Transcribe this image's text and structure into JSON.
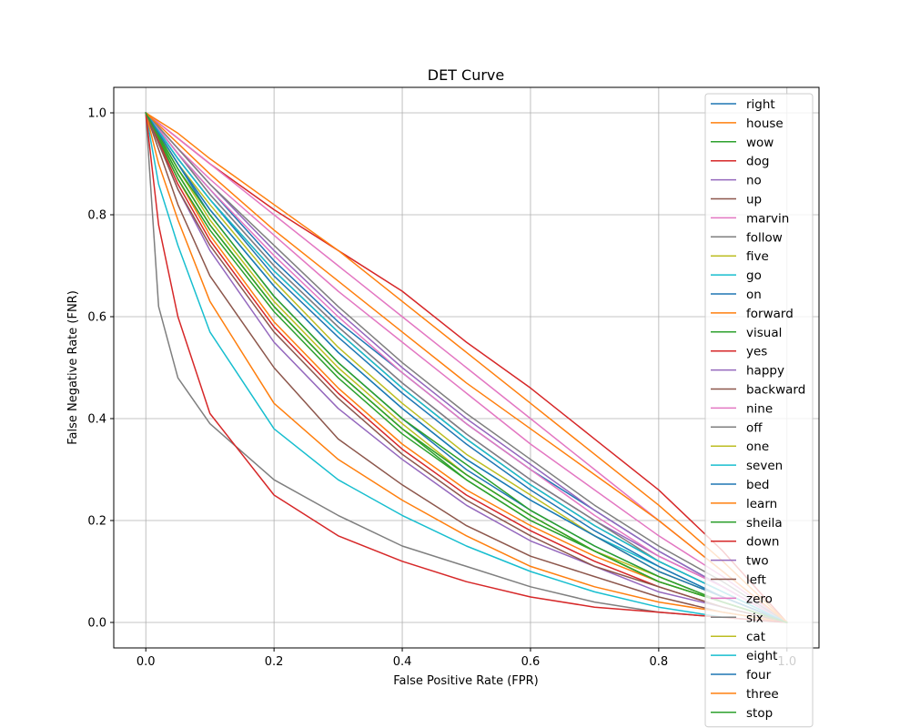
{
  "chart_data": {
    "type": "line",
    "title": "DET Curve",
    "xlabel": "False Positive Rate (FPR)",
    "ylabel": "False Negative Rate (FNR)",
    "xlim": [
      -0.05,
      1.05
    ],
    "ylim": [
      -0.05,
      1.05
    ],
    "xticks": [
      0.0,
      0.2,
      0.4,
      0.6,
      0.8,
      1.0
    ],
    "yticks": [
      0.0,
      0.2,
      0.4,
      0.6,
      0.8,
      1.0
    ],
    "xtick_labels": [
      "0.0",
      "0.2",
      "0.4",
      "0.6",
      "0.8",
      "1.0"
    ],
    "ytick_labels": [
      "0.0",
      "0.2",
      "0.4",
      "0.6",
      "0.8",
      "1.0"
    ],
    "grid": true,
    "legend_position": "right",
    "series": [
      {
        "name": "right",
        "color": "#1f77b4",
        "x": [
          0,
          0.05,
          0.1,
          0.2,
          0.3,
          0.4,
          0.5,
          0.6,
          0.7,
          0.8,
          0.9,
          1.0
        ],
        "y": [
          1,
          0.9,
          0.8,
          0.64,
          0.51,
          0.4,
          0.3,
          0.22,
          0.15,
          0.09,
          0.04,
          0
        ]
      },
      {
        "name": "house",
        "color": "#ff7f0e",
        "x": [
          0,
          0.05,
          0.1,
          0.2,
          0.3,
          0.4,
          0.5,
          0.6,
          0.7,
          0.8,
          0.9,
          1.0
        ],
        "y": [
          1,
          0.87,
          0.76,
          0.59,
          0.46,
          0.35,
          0.26,
          0.19,
          0.13,
          0.08,
          0.04,
          0
        ]
      },
      {
        "name": "wow",
        "color": "#2ca02c",
        "x": [
          0,
          0.05,
          0.1,
          0.2,
          0.3,
          0.4,
          0.5,
          0.6,
          0.7,
          0.8,
          0.9,
          1.0
        ],
        "y": [
          1,
          0.88,
          0.78,
          0.62,
          0.49,
          0.38,
          0.28,
          0.2,
          0.14,
          0.08,
          0.04,
          0
        ]
      },
      {
        "name": "dog",
        "color": "#d62728",
        "x": [
          0,
          0.05,
          0.1,
          0.2,
          0.3,
          0.4,
          0.5,
          0.6,
          0.7,
          0.8,
          0.9,
          1.0
        ],
        "y": [
          1,
          0.95,
          0.9,
          0.81,
          0.73,
          0.65,
          0.55,
          0.46,
          0.36,
          0.26,
          0.14,
          0
        ]
      },
      {
        "name": "no",
        "color": "#9467bd",
        "x": [
          0,
          0.05,
          0.1,
          0.2,
          0.3,
          0.4,
          0.5,
          0.6,
          0.7,
          0.8,
          0.9,
          1.0
        ],
        "y": [
          1,
          0.92,
          0.84,
          0.7,
          0.58,
          0.47,
          0.37,
          0.28,
          0.2,
          0.13,
          0.07,
          0
        ]
      },
      {
        "name": "up",
        "color": "#8c564b",
        "x": [
          0,
          0.05,
          0.1,
          0.2,
          0.3,
          0.4,
          0.5,
          0.6,
          0.7,
          0.8,
          0.9,
          1.0
        ],
        "y": [
          1,
          0.91,
          0.83,
          0.69,
          0.57,
          0.46,
          0.36,
          0.27,
          0.19,
          0.12,
          0.06,
          0
        ]
      },
      {
        "name": "marvin",
        "color": "#e377c2",
        "x": [
          0,
          0.05,
          0.1,
          0.2,
          0.3,
          0.4,
          0.5,
          0.6,
          0.7,
          0.8,
          0.9,
          1.0
        ],
        "y": [
          1,
          0.95,
          0.9,
          0.8,
          0.7,
          0.6,
          0.5,
          0.4,
          0.3,
          0.2,
          0.1,
          0
        ]
      },
      {
        "name": "follow",
        "color": "#7f7f7f",
        "x": [
          0,
          0.05,
          0.1,
          0.2,
          0.3,
          0.4,
          0.5,
          0.6,
          0.7,
          0.8,
          0.9,
          1.0
        ],
        "y": [
          1,
          0.92,
          0.84,
          0.7,
          0.58,
          0.47,
          0.37,
          0.28,
          0.2,
          0.12,
          0.06,
          0
        ]
      },
      {
        "name": "five",
        "color": "#bcbd22",
        "x": [
          0,
          0.05,
          0.1,
          0.2,
          0.3,
          0.4,
          0.5,
          0.6,
          0.7,
          0.8,
          0.9,
          1.0
        ],
        "y": [
          1,
          0.89,
          0.79,
          0.63,
          0.5,
          0.39,
          0.29,
          0.21,
          0.14,
          0.09,
          0.04,
          0
        ]
      },
      {
        "name": "go",
        "color": "#17becf",
        "x": [
          0,
          0.05,
          0.1,
          0.2,
          0.3,
          0.4,
          0.5,
          0.6,
          0.7,
          0.8,
          0.9,
          1.0
        ],
        "y": [
          1,
          0.9,
          0.81,
          0.66,
          0.53,
          0.42,
          0.32,
          0.24,
          0.17,
          0.11,
          0.05,
          0
        ]
      },
      {
        "name": "on",
        "color": "#1f77b4",
        "x": [
          0,
          0.05,
          0.1,
          0.2,
          0.3,
          0.4,
          0.5,
          0.6,
          0.7,
          0.8,
          0.9,
          1.0
        ],
        "y": [
          1,
          0.92,
          0.85,
          0.71,
          0.59,
          0.49,
          0.39,
          0.3,
          0.22,
          0.14,
          0.07,
          0
        ]
      },
      {
        "name": "forward",
        "color": "#ff7f0e",
        "x": [
          0,
          0.05,
          0.1,
          0.2,
          0.3,
          0.4,
          0.5,
          0.6,
          0.7,
          0.8,
          0.9,
          1.0
        ],
        "y": [
          1,
          0.96,
          0.91,
          0.82,
          0.73,
          0.63,
          0.53,
          0.43,
          0.33,
          0.23,
          0.12,
          0
        ]
      },
      {
        "name": "visual",
        "color": "#2ca02c",
        "x": [
          0,
          0.05,
          0.1,
          0.2,
          0.3,
          0.4,
          0.5,
          0.6,
          0.7,
          0.8,
          0.9,
          1.0
        ],
        "y": [
          1,
          0.87,
          0.77,
          0.61,
          0.48,
          0.37,
          0.28,
          0.2,
          0.14,
          0.08,
          0.04,
          0
        ]
      },
      {
        "name": "yes",
        "color": "#d62728",
        "x": [
          0,
          0.05,
          0.1,
          0.2,
          0.3,
          0.4,
          0.5,
          0.6,
          0.7,
          0.8,
          0.9,
          1.0
        ],
        "y": [
          1,
          0.86,
          0.75,
          0.58,
          0.45,
          0.34,
          0.25,
          0.18,
          0.12,
          0.07,
          0.03,
          0
        ]
      },
      {
        "name": "happy",
        "color": "#9467bd",
        "x": [
          0,
          0.05,
          0.1,
          0.2,
          0.3,
          0.4,
          0.5,
          0.6,
          0.7,
          0.8,
          0.9,
          1.0
        ],
        "y": [
          1,
          0.93,
          0.86,
          0.73,
          0.61,
          0.5,
          0.4,
          0.31,
          0.22,
          0.14,
          0.07,
          0
        ]
      },
      {
        "name": "backward",
        "color": "#8c564b",
        "x": [
          0,
          0.05,
          0.1,
          0.2,
          0.3,
          0.4,
          0.5,
          0.6,
          0.7,
          0.8,
          0.9,
          1.0
        ],
        "y": [
          1,
          0.82,
          0.68,
          0.5,
          0.36,
          0.27,
          0.19,
          0.13,
          0.09,
          0.05,
          0.02,
          0
        ]
      },
      {
        "name": "nine",
        "color": "#e377c2",
        "x": [
          0,
          0.05,
          0.1,
          0.2,
          0.3,
          0.4,
          0.5,
          0.6,
          0.7,
          0.8,
          0.9,
          1.0
        ],
        "y": [
          1,
          0.93,
          0.87,
          0.76,
          0.65,
          0.55,
          0.45,
          0.35,
          0.26,
          0.17,
          0.09,
          0
        ]
      },
      {
        "name": "off",
        "color": "#7f7f7f",
        "x": [
          0,
          0.02,
          0.05,
          0.1,
          0.2,
          0.3,
          0.4,
          0.5,
          0.6,
          0.7,
          0.8,
          0.9,
          1.0
        ],
        "y": [
          1,
          0.62,
          0.48,
          0.39,
          0.28,
          0.21,
          0.15,
          0.11,
          0.07,
          0.04,
          0.02,
          0.01,
          0
        ]
      },
      {
        "name": "one",
        "color": "#bcbd22",
        "x": [
          0,
          0.05,
          0.1,
          0.2,
          0.3,
          0.4,
          0.5,
          0.6,
          0.7,
          0.8,
          0.9,
          1.0
        ],
        "y": [
          1,
          0.9,
          0.82,
          0.67,
          0.54,
          0.43,
          0.33,
          0.25,
          0.17,
          0.1,
          0.05,
          0
        ]
      },
      {
        "name": "seven",
        "color": "#17becf",
        "x": [
          0,
          0.02,
          0.05,
          0.1,
          0.2,
          0.3,
          0.4,
          0.5,
          0.6,
          0.7,
          0.8,
          0.9,
          1.0
        ],
        "y": [
          1,
          0.86,
          0.74,
          0.57,
          0.38,
          0.28,
          0.21,
          0.15,
          0.1,
          0.06,
          0.03,
          0.01,
          0
        ]
      },
      {
        "name": "bed",
        "color": "#1f77b4",
        "x": [
          0,
          0.05,
          0.1,
          0.2,
          0.3,
          0.4,
          0.5,
          0.6,
          0.7,
          0.8,
          0.9,
          1.0
        ],
        "y": [
          1,
          0.91,
          0.83,
          0.68,
          0.56,
          0.45,
          0.35,
          0.26,
          0.18,
          0.11,
          0.05,
          0
        ]
      },
      {
        "name": "learn",
        "color": "#ff7f0e",
        "x": [
          0,
          0.02,
          0.05,
          0.1,
          0.2,
          0.3,
          0.4,
          0.5,
          0.6,
          0.7,
          0.8,
          0.9,
          1.0
        ],
        "y": [
          1,
          0.9,
          0.79,
          0.63,
          0.43,
          0.32,
          0.24,
          0.17,
          0.11,
          0.07,
          0.04,
          0.02,
          0
        ]
      },
      {
        "name": "sheila",
        "color": "#2ca02c",
        "x": [
          0,
          0.05,
          0.1,
          0.2,
          0.3,
          0.4,
          0.5,
          0.6,
          0.7,
          0.8,
          0.9,
          1.0
        ],
        "y": [
          1,
          0.89,
          0.8,
          0.64,
          0.51,
          0.4,
          0.31,
          0.22,
          0.15,
          0.09,
          0.04,
          0
        ]
      },
      {
        "name": "down",
        "color": "#d62728",
        "x": [
          0,
          0.02,
          0.05,
          0.1,
          0.2,
          0.3,
          0.4,
          0.5,
          0.6,
          0.7,
          0.8,
          0.9,
          1.0
        ],
        "y": [
          1,
          0.78,
          0.6,
          0.41,
          0.25,
          0.17,
          0.12,
          0.08,
          0.05,
          0.03,
          0.02,
          0.01,
          0
        ]
      },
      {
        "name": "two",
        "color": "#9467bd",
        "x": [
          0,
          0.05,
          0.1,
          0.2,
          0.3,
          0.4,
          0.5,
          0.6,
          0.7,
          0.8,
          0.9,
          1.0
        ],
        "y": [
          1,
          0.85,
          0.73,
          0.55,
          0.42,
          0.32,
          0.23,
          0.16,
          0.11,
          0.06,
          0.03,
          0
        ]
      },
      {
        "name": "left",
        "color": "#8c564b",
        "x": [
          0,
          0.05,
          0.1,
          0.2,
          0.3,
          0.4,
          0.5,
          0.6,
          0.7,
          0.8,
          0.9,
          1.0
        ],
        "y": [
          1,
          0.85,
          0.74,
          0.57,
          0.44,
          0.33,
          0.24,
          0.17,
          0.11,
          0.07,
          0.03,
          0
        ]
      },
      {
        "name": "zero",
        "color": "#e377c2",
        "x": [
          0,
          0.05,
          0.1,
          0.2,
          0.3,
          0.4,
          0.5,
          0.6,
          0.7,
          0.8,
          0.9,
          1.0
        ],
        "y": [
          1,
          0.92,
          0.85,
          0.72,
          0.6,
          0.49,
          0.39,
          0.3,
          0.21,
          0.13,
          0.07,
          0
        ]
      },
      {
        "name": "six",
        "color": "#7f7f7f",
        "x": [
          0,
          0.05,
          0.1,
          0.2,
          0.3,
          0.4,
          0.5,
          0.6,
          0.7,
          0.8,
          0.9,
          1.0
        ],
        "y": [
          1,
          0.93,
          0.86,
          0.74,
          0.62,
          0.51,
          0.41,
          0.32,
          0.23,
          0.15,
          0.08,
          0
        ]
      },
      {
        "name": "cat",
        "color": "#bcbd22",
        "x": [
          0,
          0.05,
          0.1,
          0.2,
          0.3,
          0.4,
          0.5,
          0.6,
          0.7,
          0.8,
          0.9,
          1.0
        ],
        "y": [
          1,
          0.88,
          0.78,
          0.62,
          0.49,
          0.38,
          0.29,
          0.21,
          0.14,
          0.08,
          0.04,
          0
        ]
      },
      {
        "name": "eight",
        "color": "#17becf",
        "x": [
          0,
          0.05,
          0.1,
          0.2,
          0.3,
          0.4,
          0.5,
          0.6,
          0.7,
          0.8,
          0.9,
          1.0
        ],
        "y": [
          1,
          0.91,
          0.83,
          0.69,
          0.57,
          0.46,
          0.36,
          0.27,
          0.19,
          0.12,
          0.06,
          0
        ]
      },
      {
        "name": "four",
        "color": "#1f77b4",
        "x": [
          0,
          0.05,
          0.1,
          0.2,
          0.3,
          0.4,
          0.5,
          0.6,
          0.7,
          0.8,
          0.9,
          1.0
        ],
        "y": [
          1,
          0.9,
          0.81,
          0.66,
          0.53,
          0.42,
          0.32,
          0.24,
          0.17,
          0.1,
          0.05,
          0
        ]
      },
      {
        "name": "three",
        "color": "#ff7f0e",
        "x": [
          0,
          0.05,
          0.1,
          0.2,
          0.3,
          0.4,
          0.5,
          0.6,
          0.7,
          0.8,
          0.9,
          1.0
        ],
        "y": [
          1,
          0.94,
          0.88,
          0.77,
          0.67,
          0.57,
          0.47,
          0.38,
          0.29,
          0.2,
          0.1,
          0
        ]
      },
      {
        "name": "stop",
        "color": "#2ca02c",
        "x": [
          0,
          0.05,
          0.1,
          0.2,
          0.3,
          0.4,
          0.5,
          0.6,
          0.7,
          0.8,
          0.9,
          1.0
        ],
        "y": [
          1,
          0.88,
          0.78,
          0.62,
          0.49,
          0.38,
          0.29,
          0.21,
          0.14,
          0.08,
          0.04,
          0
        ]
      }
    ]
  }
}
